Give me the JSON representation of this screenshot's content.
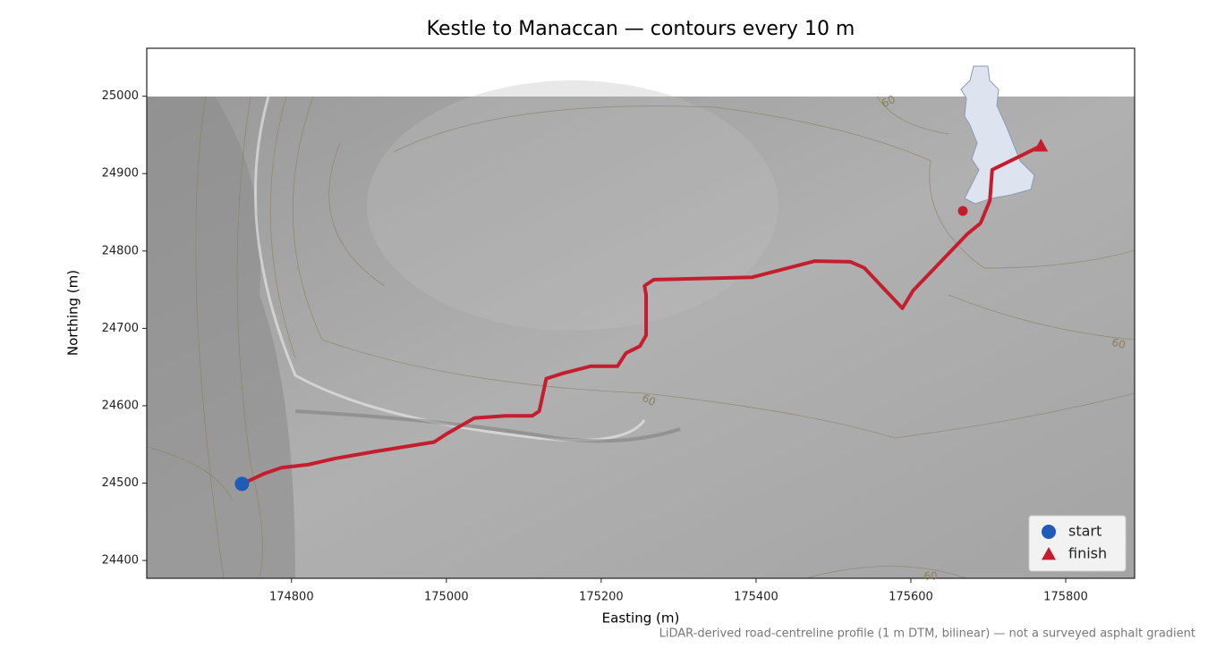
{
  "chart_data": {
    "type": "line",
    "title": "Kestle to Manaccan — contours every 10 m",
    "xlabel": "Easting (m)",
    "ylabel": "Northing (m)",
    "note": "LiDAR-derived road-centreline profile (1 m DTM, bilinear) — not a surveyed asphalt gradient",
    "x": [
      174736,
      174764,
      174787,
      174822,
      174857,
      174909,
      174984,
      175001,
      175036,
      175076,
      175111,
      175120,
      175129,
      175151,
      175186,
      175221,
      175232,
      175250,
      175258,
      175258,
      175256,
      175268,
      175395,
      175476,
      175522,
      175540,
      175589,
      175603,
      175673,
      175690,
      175702,
      175705,
      175742,
      175768
    ],
    "values": [
      24499,
      24512,
      24520,
      24524,
      24532,
      24541,
      24553,
      24564,
      24584,
      24587,
      24587,
      24593,
      24635,
      24642,
      24651,
      24651,
      24668,
      24677,
      24691,
      24743,
      24755,
      24763,
      24766,
      24787,
      24786,
      24778,
      24726,
      24749,
      24822,
      24836,
      24865,
      24905,
      24923,
      24936
    ],
    "color": "#c41e2e",
    "markers": [
      {
        "name": "start",
        "x": 174736,
        "y": 24499,
        "color": "#1f5bb8",
        "shape": "circle"
      },
      {
        "name": "finish",
        "x": 175768,
        "y": 24936,
        "color": "#c41e2e",
        "shape": "triangle"
      }
    ],
    "contour_labels": [
      60,
      60,
      60,
      60
    ],
    "legend": "lower right",
    "xlim": [
      174613,
      175889
    ],
    "ylim": [
      24377,
      25062
    ],
    "xticks": [
      174800,
      175000,
      175200,
      175400,
      175600,
      175800
    ],
    "yticks": [
      24400,
      24500,
      24600,
      24700,
      24800,
      24900,
      25000
    ]
  }
}
